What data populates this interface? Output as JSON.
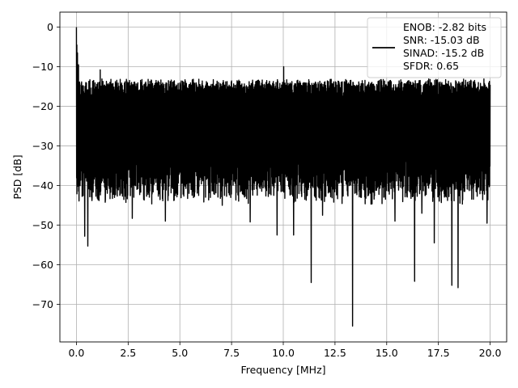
{
  "chart_data": {
    "type": "line",
    "title": "",
    "xlabel": "Frequency [MHz]",
    "ylabel": "PSD [dB]",
    "xlim": [
      -0.8,
      20.8
    ],
    "ylim": [
      -79.5,
      3.8
    ],
    "xticks": [
      0.0,
      2.5,
      5.0,
      7.5,
      10.0,
      12.5,
      15.0,
      17.5,
      20.0
    ],
    "xtick_labels": [
      "0.0",
      "2.5",
      "5.0",
      "7.5",
      "10.0",
      "12.5",
      "15.0",
      "17.5",
      "20.0"
    ],
    "yticks": [
      0,
      -10,
      -20,
      -30,
      -40,
      -50,
      -60,
      -70
    ],
    "ytick_labels": [
      "0",
      "−10",
      "−20",
      "−30",
      "−40",
      "−50",
      "−60",
      "−70"
    ],
    "grid": true,
    "legend_position": "top-right",
    "line_color": "#000000",
    "legend": [
      "ENOB: -2.82 bits",
      "SNR: -15.03 dB",
      "SINAD: -15.2 dB",
      "SFDR: 0.65"
    ],
    "series": [
      {
        "x_range": [
          0.0,
          20.0
        ],
        "noise_floor_db": -27,
        "noise_upper_db": -15,
        "noise_lower_db": -45,
        "peaks": [
          {
            "x": 0.0,
            "y": 0.0
          },
          {
            "x": 0.02,
            "y": -4.5
          },
          {
            "x": 0.05,
            "y": -6.5
          },
          {
            "x": 0.1,
            "y": -9.5
          },
          {
            "x": 1.15,
            "y": -10.8
          },
          {
            "x": 10.02,
            "y": -10.0
          }
        ],
        "notches": [
          {
            "x": 0.4,
            "y": -52.8
          },
          {
            "x": 0.55,
            "y": -55.3
          },
          {
            "x": 0.75,
            "y": -43.8
          },
          {
            "x": 1.4,
            "y": -43.5
          },
          {
            "x": 2.1,
            "y": -42.5
          },
          {
            "x": 2.7,
            "y": -48.3
          },
          {
            "x": 3.25,
            "y": -43.5
          },
          {
            "x": 4.3,
            "y": -49.0
          },
          {
            "x": 7.05,
            "y": -45.0
          },
          {
            "x": 8.4,
            "y": -49.2
          },
          {
            "x": 9.7,
            "y": -52.5
          },
          {
            "x": 10.5,
            "y": -52.5
          },
          {
            "x": 11.35,
            "y": -64.5
          },
          {
            "x": 11.9,
            "y": -47.5
          },
          {
            "x": 13.35,
            "y": -75.5
          },
          {
            "x": 15.4,
            "y": -49.0
          },
          {
            "x": 16.35,
            "y": -64.2
          },
          {
            "x": 16.7,
            "y": -47.0
          },
          {
            "x": 17.3,
            "y": -54.5
          },
          {
            "x": 18.15,
            "y": -65.2
          },
          {
            "x": 18.45,
            "y": -65.8
          },
          {
            "x": 19.85,
            "y": -49.5
          }
        ]
      }
    ]
  }
}
